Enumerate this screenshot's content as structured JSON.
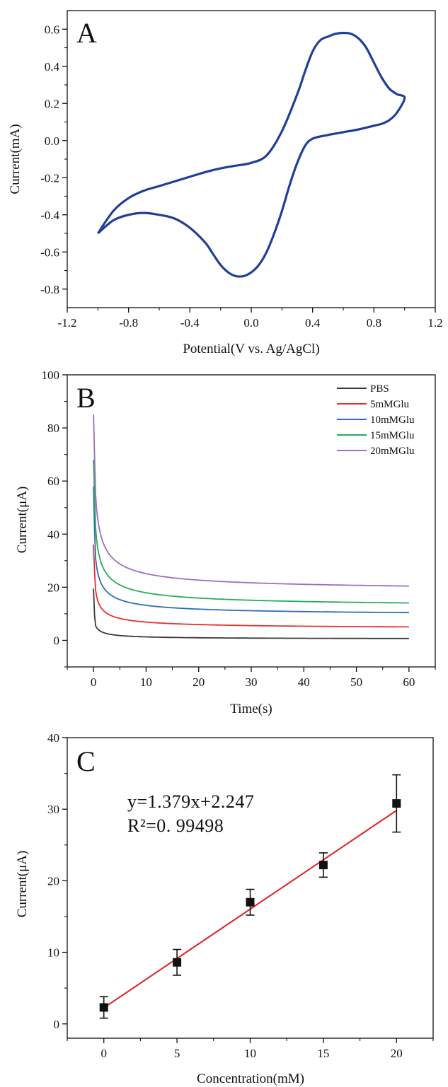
{
  "figure": {
    "panels": [
      {
        "letter": "A"
      },
      {
        "letter": "B"
      },
      {
        "letter": "C"
      }
    ]
  },
  "chart_data": [
    {
      "type": "line",
      "panel": "A",
      "xlabel": "Potential(V vs. Ag/AgCl)",
      "ylabel": "Current(mA)",
      "xlim": [
        -1.2,
        1.2
      ],
      "ylim": [
        -0.9,
        0.7
      ],
      "xticks": [
        "-1.2",
        "-0.8",
        "-0.4",
        "0.0",
        "0.4",
        "0.8",
        "1.2"
      ],
      "yticks": [
        "-0.8",
        "-0.6",
        "-0.4",
        "-0.2",
        "0.0",
        "0.2",
        "0.4",
        "0.6"
      ],
      "color": "#1f3f99",
      "series": [
        {
          "x": [
            -1.0,
            -0.9,
            -0.8,
            -0.7,
            -0.6,
            -0.5,
            -0.4,
            -0.3,
            -0.2,
            -0.1,
            0.0,
            0.1,
            0.2,
            0.3,
            0.35,
            0.4,
            0.45,
            0.5,
            0.55,
            0.6,
            0.65,
            0.7,
            0.75,
            0.8,
            0.85,
            0.9,
            0.95,
            1.0,
            0.95,
            0.9,
            0.85,
            0.8,
            0.7,
            0.6,
            0.5,
            0.4,
            0.35,
            0.3,
            0.25,
            0.2,
            0.15,
            0.1,
            0.05,
            0.0,
            -0.05,
            -0.1,
            -0.15,
            -0.2,
            -0.25,
            -0.3,
            -0.4,
            -0.5,
            -0.6,
            -0.7,
            -0.8,
            -0.9,
            -1.0
          ],
          "y": [
            -0.5,
            -0.38,
            -0.31,
            -0.27,
            -0.245,
            -0.22,
            -0.195,
            -0.17,
            -0.15,
            -0.135,
            -0.12,
            -0.08,
            0.05,
            0.25,
            0.37,
            0.48,
            0.54,
            0.56,
            0.575,
            0.58,
            0.575,
            0.55,
            0.5,
            0.42,
            0.34,
            0.28,
            0.25,
            0.23,
            0.15,
            0.11,
            0.09,
            0.08,
            0.06,
            0.045,
            0.03,
            0.01,
            -0.03,
            -0.12,
            -0.24,
            -0.38,
            -0.5,
            -0.6,
            -0.67,
            -0.71,
            -0.73,
            -0.73,
            -0.71,
            -0.67,
            -0.61,
            -0.55,
            -0.47,
            -0.42,
            -0.4,
            -0.39,
            -0.4,
            -0.43,
            -0.5
          ]
        }
      ]
    },
    {
      "type": "line",
      "panel": "B",
      "xlabel": "Time(s)",
      "ylabel": "Current(μA)",
      "xlim": [
        -5,
        65
      ],
      "ylim": [
        -10,
        100
      ],
      "xticks": [
        "0",
        "10",
        "20",
        "30",
        "40",
        "50",
        "60"
      ],
      "yticks": [
        "0",
        "20",
        "40",
        "60",
        "80",
        "100"
      ],
      "legend_position": "top-right",
      "series": [
        {
          "name": "PBS",
          "color": "#3a3a3a",
          "i0": 19.5,
          "iinf": 0.4,
          "A": 1.8,
          "tau": 1.2,
          "B": 9,
          "k": 0.015
        },
        {
          "name": "5mMGlu",
          "color": "#e53030",
          "i0": 36,
          "iinf": 4.0,
          "A": 7.5,
          "tau": 1.4,
          "B": 12,
          "k": 0.02
        },
        {
          "name": "10mMGlu",
          "color": "#2a6fb8",
          "i0": 58,
          "iinf": 9.0,
          "A": 9.5,
          "tau": 1.5,
          "B": 26,
          "k": 0.03
        },
        {
          "name": "15mMGlu",
          "color": "#2aaa5a",
          "i0": 68,
          "iinf": 12.0,
          "A": 14,
          "tau": 1.6,
          "B": 31,
          "k": 0.035
        },
        {
          "name": "20mMGlu",
          "color": "#9b6fc0",
          "i0": 85,
          "iinf": 18.0,
          "A": 16,
          "tau": 1.6,
          "B": 43,
          "k": 0.03
        }
      ]
    },
    {
      "type": "scatter",
      "panel": "C",
      "xlabel": "Concentration(mM)",
      "ylabel": "Current(μA)",
      "xlim": [
        -2.5,
        22.5
      ],
      "ylim": [
        -2,
        40
      ],
      "xticks": [
        "0",
        "5",
        "10",
        "15",
        "20"
      ],
      "yticks": [
        "0",
        "10",
        "20",
        "30",
        "40"
      ],
      "equation": "y=1.379x+2.247",
      "r2_label": "R²=0. 99498",
      "marker_color": "#111111",
      "fit_color": "#e02020",
      "fit": {
        "slope": 1.379,
        "intercept": 2.247,
        "x_range": [
          0,
          20
        ]
      },
      "points": [
        {
          "x": 0,
          "y": 2.3,
          "err": 1.5
        },
        {
          "x": 5,
          "y": 8.6,
          "err": 1.8
        },
        {
          "x": 10,
          "y": 17.0,
          "err": 1.8
        },
        {
          "x": 15,
          "y": 22.2,
          "err": 1.7
        },
        {
          "x": 20,
          "y": 30.8,
          "err": 4.0
        }
      ]
    }
  ]
}
